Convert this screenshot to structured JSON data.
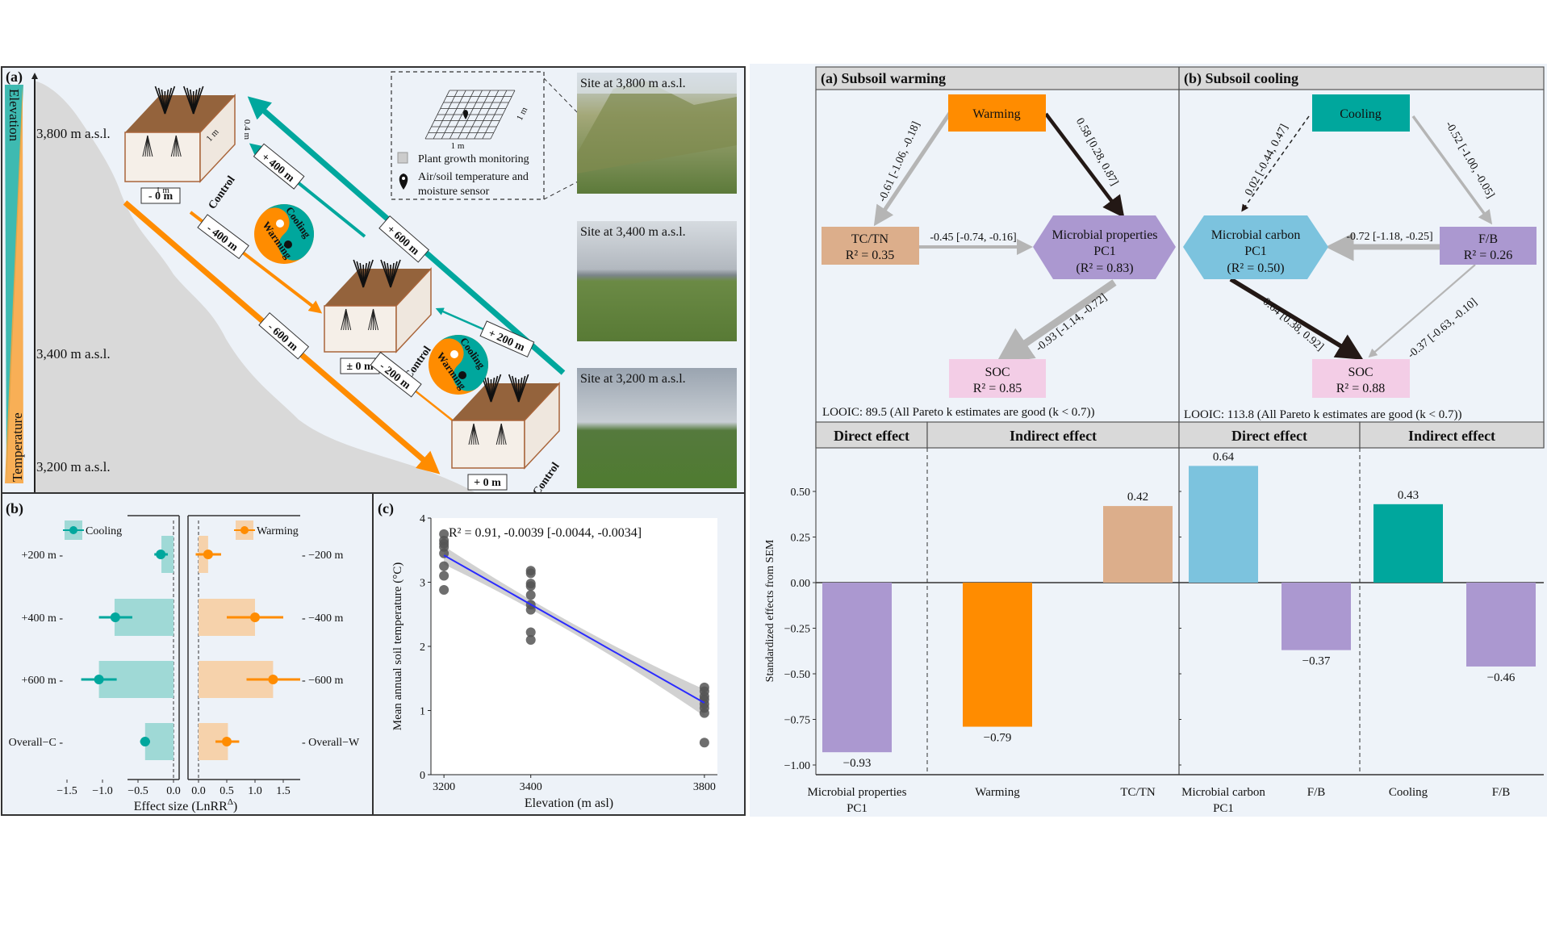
{
  "panel_a": {
    "label": "(a)",
    "axis_top": "Elevation",
    "axis_bottom": "Temperature",
    "altitudes": [
      "3,800 m a.s.l.",
      "3,400 m a.s.l.",
      "3,200 m a.s.l."
    ],
    "base_labels": [
      "- 0 m",
      "± 0 m",
      "+ 0 m"
    ],
    "control": "Control",
    "cube_width": "1 m",
    "cube_depth": "1 m",
    "cube_height": "0.4 m",
    "arrows": {
      "up_600": "+ 600 m",
      "up_400": "+ 400 m",
      "up_200": "+ 200 m",
      "down_600": "- 600 m",
      "down_400": "- 400 m",
      "down_200": "- 200 m"
    },
    "yinyang": {
      "cooling": "Cooling",
      "warming": "Warming"
    },
    "inset": {
      "grid_side": "1 m",
      "grid_bottom": "1 m",
      "legend_grid": "Plant growth monitoring",
      "legend_sensor_1": "Air/soil temperature and",
      "legend_sensor_2": "moisture sensor"
    },
    "sites": [
      "Site at 3,800 m a.s.l.",
      "Site at 3,400 m a.s.l.",
      "Site at 3,200 m a.s.l."
    ],
    "colors": {
      "cooling": "#00a79d",
      "warming": "#ff8c00",
      "soil": "#94633c",
      "mountain": "#d9d9d9"
    }
  },
  "sem": {
    "panel_a_title": "(a) Subsoil warming",
    "panel_b_title": "(b) Subsoil cooling",
    "a": {
      "nodes": {
        "warming": "Warming",
        "tctn": "TC/TN",
        "tctn_r2": "R² = 0.35",
        "micro_1": "Microbial properties",
        "micro_2": "PC1",
        "micro_r2": "(R² = 0.83)",
        "soc": "SOC",
        "soc_r2": "R² = 0.85"
      },
      "paths": {
        "warming_tctn": "-0.61 [-1.06, -0.18]",
        "warming_micro": "0.58 [0.28, 0.87]",
        "tctn_micro": "-0.45 [-0.74, -0.16]",
        "micro_soc": "-0.93 [-1.14, -0.72]"
      },
      "looic": "LOOIC: 89.5 (All Pareto k estimates are good (k < 0.7))"
    },
    "b": {
      "nodes": {
        "cooling": "Cooling",
        "micro_1": "Microbial carbon",
        "micro_2": "PC1",
        "micro_r2": "(R² = 0.50)",
        "fb": "F/B",
        "fb_r2": "R² = 0.26",
        "soc": "SOC",
        "soc_r2": "R² = 0.88"
      },
      "paths": {
        "cooling_micro": "0.02 [-0.44, 0.47]",
        "cooling_fb": "-0.52 [-1.00, -0.05]",
        "fb_micro": "-0.72 [-1.18, -0.25]",
        "micro_soc": "0.64 [0.38, 0.92]",
        "fb_soc": "-0.37 [-0.63, -0.10]"
      },
      "looic": "LOOIC: 113.8 (All Pareto k estimates are good (k < 0.7))"
    },
    "colors": {
      "warming": "#ff8c00",
      "cooling": "#00a79d",
      "tctn": "#dcae8b",
      "purple": "#ab98d0",
      "lightblue": "#7cc3de",
      "soc": "#f3cde6",
      "positive_path": "#231815",
      "negative_path": "#b5b5b5"
    }
  },
  "chart_data": [
    {
      "id": "b",
      "panel_label": "(b)",
      "type": "bar",
      "xlabel": "Effect size (LnRR",
      "xlabel_sup": "Δ",
      "xlabel_end": ")",
      "facets": [
        {
          "name": "Cooling",
          "color": "#00a79d",
          "bar_color": "#9fd9d6",
          "categories": [
            "+200 m",
            "+400 m",
            "+600 m",
            "Overall−C"
          ],
          "values": [
            -0.17,
            -0.83,
            -1.05,
            -0.4
          ],
          "points": [
            -0.18,
            -0.82,
            -1.05,
            -0.4
          ],
          "ci": [
            [
              -0.27,
              -0.08
            ],
            [
              -1.05,
              -0.58
            ],
            [
              -1.3,
              -0.8
            ],
            [
              -0.47,
              -0.33
            ]
          ],
          "xlim": [
            -1.6,
            0.1
          ],
          "ticks": [
            -1.5,
            -1.0,
            -0.5,
            0.0
          ],
          "tick_labels": [
            "−1.5",
            "−1.0",
            "−0.5",
            "0.0"
          ]
        },
        {
          "name": "Warming",
          "color": "#ff8c00",
          "bar_color": "#f6d2ab",
          "categories": [
            "−200 m",
            "−400 m",
            "−600 m",
            "Overall−W"
          ],
          "values": [
            0.17,
            1.0,
            1.32,
            0.52
          ],
          "points": [
            0.17,
            1.0,
            1.32,
            0.5
          ],
          "ci": [
            [
              -0.05,
              0.4
            ],
            [
              0.5,
              1.5
            ],
            [
              0.85,
              1.8
            ],
            [
              0.3,
              0.72
            ]
          ],
          "xlim": [
            -0.15,
            1.85
          ],
          "ticks": [
            0.0,
            0.5,
            1.0,
            1.5
          ],
          "tick_labels": [
            "0.0",
            "0.5",
            "1.0",
            "1.5"
          ]
        }
      ]
    },
    {
      "id": "c",
      "panel_label": "(c)",
      "type": "scatter",
      "xlabel": "Elevation (m asl)",
      "ylabel": "Mean annual soil temperature (°C)",
      "annotation": "R² = 0.91,  -0.0039 [-0.0044, -0.0034]",
      "xlim": [
        3170,
        3830
      ],
      "ylim": [
        0,
        4
      ],
      "xticks": [
        3200,
        3400,
        3800
      ],
      "yticks": [
        0,
        1,
        2,
        3,
        4
      ],
      "points": [
        [
          3200,
          3.75
        ],
        [
          3200,
          3.65
        ],
        [
          3200,
          3.6
        ],
        [
          3200,
          3.55
        ],
        [
          3200,
          3.45
        ],
        [
          3200,
          3.25
        ],
        [
          3200,
          3.1
        ],
        [
          3200,
          2.88
        ],
        [
          3400,
          3.18
        ],
        [
          3400,
          3.14
        ],
        [
          3400,
          2.98
        ],
        [
          3400,
          2.94
        ],
        [
          3400,
          2.8
        ],
        [
          3400,
          2.65
        ],
        [
          3400,
          2.57
        ],
        [
          3400,
          2.22
        ],
        [
          3400,
          2.1
        ],
        [
          3800,
          1.36
        ],
        [
          3800,
          1.3
        ],
        [
          3800,
          1.22
        ],
        [
          3800,
          1.17
        ],
        [
          3800,
          1.1
        ],
        [
          3800,
          1.04
        ],
        [
          3800,
          0.96
        ],
        [
          3800,
          0.5
        ]
      ],
      "fit": {
        "x": [
          3200,
          3800
        ],
        "y": [
          3.42,
          1.12
        ],
        "color": "#2b2bff",
        "band_color": "#bdbdbd"
      }
    },
    {
      "id": "sem_effects",
      "type": "bar",
      "ylabel": "Standardized effects from SEM",
      "ylim": [
        -1.07,
        0.73
      ],
      "yticks": [
        0.5,
        0.25,
        0.0,
        -0.25,
        -0.5,
        -0.75,
        -1.0
      ],
      "ytick_labels": [
        "0.50",
        "0.25",
        "0.00",
        "−0.25",
        "−0.50",
        "−0.75",
        "−1.00"
      ],
      "facet_headers": [
        "Direct effect",
        "Indirect effect",
        "Direct effect",
        "Indirect effect"
      ],
      "categories": [
        [
          "Microbial properties",
          "PC1"
        ],
        [
          "Warming"
        ],
        [
          "TC/TN"
        ],
        [
          "Microbial carbon",
          "PC1"
        ],
        [
          "F/B"
        ],
        [
          "Cooling"
        ],
        [
          "F/B"
        ]
      ],
      "values": [
        -0.93,
        -0.79,
        0.42,
        0.64,
        -0.37,
        0.43,
        -0.46
      ],
      "value_labels": [
        "−0.93",
        "−0.79",
        "0.42",
        "0.64",
        "−0.37",
        "0.43",
        "−0.46"
      ],
      "colors": [
        "#ab98d0",
        "#ff8c00",
        "#dcae8b",
        "#7cc3de",
        "#ab98d0",
        "#00a79d",
        "#ab98d0"
      ]
    }
  ]
}
